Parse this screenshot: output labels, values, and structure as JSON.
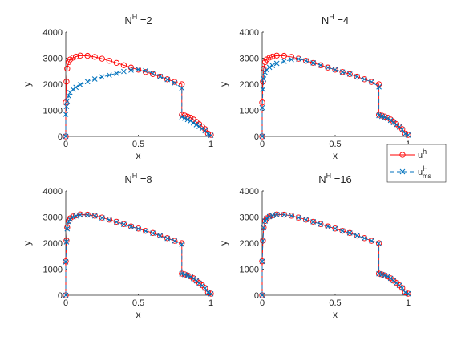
{
  "chart_data": [
    {
      "type": "scatter",
      "title": {
        "base": "N",
        "sup": "H",
        "rest": " =2"
      },
      "xlabel": "x",
      "ylabel": "y",
      "xlim": [
        0,
        1
      ],
      "ylim": [
        0,
        4000
      ],
      "xticks": [
        0,
        0.5,
        1
      ],
      "xtick_labels": [
        "0",
        "0.5",
        "1"
      ],
      "yticks": [
        0,
        1000,
        2000,
        3000,
        4000
      ],
      "ytick_labels": [
        "0",
        "1000",
        "2000",
        "3000",
        "4000"
      ],
      "grid": false,
      "series": [
        {
          "key": "uh",
          "color": "#ff0000",
          "marker": "circle",
          "line": "solid",
          "x": [
            0,
            0,
            0.005,
            0.01,
            0.02,
            0.03,
            0.05,
            0.07,
            0.1,
            0.15,
            0.2,
            0.25,
            0.3,
            0.35,
            0.4,
            0.45,
            0.5,
            0.55,
            0.6,
            0.65,
            0.7,
            0.75,
            0.8,
            0.8,
            0.82,
            0.84,
            0.86,
            0.88,
            0.9,
            0.92,
            0.94,
            0.96,
            0.98,
            1.0
          ],
          "y": [
            0,
            1300,
            2100,
            2600,
            2850,
            2950,
            3020,
            3060,
            3100,
            3090,
            3050,
            2980,
            2900,
            2820,
            2730,
            2640,
            2560,
            2470,
            2390,
            2290,
            2190,
            2090,
            2000,
            830,
            800,
            760,
            720,
            650,
            560,
            470,
            380,
            280,
            110,
            60
          ]
        },
        {
          "key": "ums",
          "color": "#0072bd",
          "marker": "x",
          "line": "dash",
          "x": [
            0,
            0,
            0.005,
            0.01,
            0.02,
            0.03,
            0.05,
            0.07,
            0.1,
            0.15,
            0.2,
            0.25,
            0.3,
            0.35,
            0.4,
            0.45,
            0.5,
            0.55,
            0.6,
            0.65,
            0.7,
            0.75,
            0.8,
            0.8,
            0.82,
            0.84,
            0.86,
            0.88,
            0.9,
            0.92,
            0.94,
            0.96,
            0.98,
            1.0
          ],
          "y": [
            0,
            850,
            1150,
            1350,
            1550,
            1680,
            1800,
            1880,
            1980,
            2100,
            2200,
            2280,
            2350,
            2420,
            2490,
            2540,
            2570,
            2520,
            2420,
            2300,
            2180,
            2050,
            1850,
            750,
            700,
            650,
            600,
            520,
            450,
            380,
            300,
            220,
            90,
            40
          ]
        }
      ]
    },
    {
      "type": "scatter",
      "title": {
        "base": "N",
        "sup": "H",
        "rest": " =4"
      },
      "xlabel": "x",
      "ylabel": "y",
      "xlim": [
        0,
        1
      ],
      "ylim": [
        0,
        4000
      ],
      "xticks": [
        0,
        0.5,
        1
      ],
      "xtick_labels": [
        "0",
        "0.5",
        "1"
      ],
      "yticks": [
        0,
        1000,
        2000,
        3000,
        4000
      ],
      "ytick_labels": [
        "0",
        "1000",
        "2000",
        "3000",
        "4000"
      ],
      "grid": false,
      "series": [
        {
          "key": "uh",
          "color": "#ff0000",
          "marker": "circle",
          "line": "solid",
          "x": [
            0,
            0,
            0.005,
            0.01,
            0.02,
            0.03,
            0.05,
            0.07,
            0.1,
            0.15,
            0.2,
            0.25,
            0.3,
            0.35,
            0.4,
            0.45,
            0.5,
            0.55,
            0.6,
            0.65,
            0.7,
            0.75,
            0.8,
            0.8,
            0.82,
            0.84,
            0.86,
            0.88,
            0.9,
            0.92,
            0.94,
            0.96,
            0.98,
            1.0
          ],
          "y": [
            0,
            1300,
            2100,
            2600,
            2850,
            2950,
            3020,
            3060,
            3100,
            3090,
            3050,
            2980,
            2900,
            2820,
            2730,
            2640,
            2560,
            2470,
            2390,
            2290,
            2190,
            2090,
            2000,
            830,
            800,
            760,
            720,
            650,
            560,
            470,
            380,
            280,
            110,
            60
          ]
        },
        {
          "key": "ums",
          "color": "#0072bd",
          "marker": "x",
          "line": "dash",
          "x": [
            0,
            0,
            0.005,
            0.01,
            0.02,
            0.03,
            0.05,
            0.07,
            0.1,
            0.15,
            0.2,
            0.25,
            0.3,
            0.35,
            0.4,
            0.45,
            0.5,
            0.55,
            0.6,
            0.65,
            0.7,
            0.75,
            0.8,
            0.8,
            0.82,
            0.84,
            0.86,
            0.88,
            0.9,
            0.92,
            0.94,
            0.96,
            0.98,
            1.0
          ],
          "y": [
            0,
            1100,
            1800,
            2200,
            2450,
            2550,
            2650,
            2720,
            2800,
            2880,
            2950,
            2970,
            2900,
            2820,
            2730,
            2640,
            2560,
            2470,
            2390,
            2290,
            2190,
            2090,
            1900,
            800,
            770,
            730,
            690,
            620,
            530,
            450,
            360,
            260,
            100,
            50
          ]
        }
      ]
    },
    {
      "type": "scatter",
      "title": {
        "base": "N",
        "sup": "H",
        "rest": " =8"
      },
      "xlabel": "x",
      "ylabel": "y",
      "xlim": [
        0,
        1
      ],
      "ylim": [
        0,
        4000
      ],
      "xticks": [
        0,
        0.5,
        1
      ],
      "xtick_labels": [
        "0",
        "0.5",
        "1"
      ],
      "yticks": [
        0,
        1000,
        2000,
        3000,
        4000
      ],
      "ytick_labels": [
        "0",
        "1000",
        "2000",
        "3000",
        "4000"
      ],
      "grid": false,
      "series": [
        {
          "key": "uh",
          "color": "#ff0000",
          "marker": "circle",
          "line": "solid",
          "x": [
            0,
            0,
            0.005,
            0.01,
            0.02,
            0.03,
            0.05,
            0.07,
            0.1,
            0.15,
            0.2,
            0.25,
            0.3,
            0.35,
            0.4,
            0.45,
            0.5,
            0.55,
            0.6,
            0.65,
            0.7,
            0.75,
            0.8,
            0.8,
            0.82,
            0.84,
            0.86,
            0.88,
            0.9,
            0.92,
            0.94,
            0.96,
            0.98,
            1.0
          ],
          "y": [
            0,
            1300,
            2100,
            2600,
            2850,
            2950,
            3020,
            3060,
            3100,
            3090,
            3050,
            2980,
            2900,
            2820,
            2730,
            2640,
            2560,
            2470,
            2390,
            2290,
            2190,
            2090,
            2000,
            830,
            800,
            760,
            720,
            650,
            560,
            470,
            380,
            280,
            110,
            60
          ]
        },
        {
          "key": "ums",
          "color": "#0072bd",
          "marker": "x",
          "line": "dash",
          "x": [
            0,
            0,
            0.005,
            0.01,
            0.02,
            0.03,
            0.05,
            0.07,
            0.1,
            0.15,
            0.2,
            0.25,
            0.3,
            0.35,
            0.4,
            0.45,
            0.5,
            0.55,
            0.6,
            0.65,
            0.7,
            0.75,
            0.8,
            0.8,
            0.82,
            0.84,
            0.86,
            0.88,
            0.9,
            0.92,
            0.94,
            0.96,
            0.98,
            1.0
          ],
          "y": [
            0,
            1280,
            2050,
            2550,
            2820,
            2920,
            3000,
            3040,
            3080,
            3080,
            3040,
            2970,
            2890,
            2810,
            2720,
            2630,
            2550,
            2460,
            2380,
            2280,
            2180,
            2080,
            1950,
            820,
            790,
            750,
            710,
            640,
            550,
            460,
            370,
            270,
            105,
            55
          ]
        }
      ]
    },
    {
      "type": "scatter",
      "title": {
        "base": "N",
        "sup": "H",
        "rest": " =16"
      },
      "xlabel": "x",
      "ylabel": "y",
      "xlim": [
        0,
        1
      ],
      "ylim": [
        0,
        4000
      ],
      "xticks": [
        0,
        0.5,
        1
      ],
      "xtick_labels": [
        "0",
        "0.5",
        "1"
      ],
      "yticks": [
        0,
        1000,
        2000,
        3000,
        4000
      ],
      "ytick_labels": [
        "0",
        "1000",
        "2000",
        "3000",
        "4000"
      ],
      "grid": false,
      "series": [
        {
          "key": "uh",
          "color": "#ff0000",
          "marker": "circle",
          "line": "solid",
          "x": [
            0,
            0,
            0.005,
            0.01,
            0.02,
            0.03,
            0.05,
            0.07,
            0.1,
            0.15,
            0.2,
            0.25,
            0.3,
            0.35,
            0.4,
            0.45,
            0.5,
            0.55,
            0.6,
            0.65,
            0.7,
            0.75,
            0.8,
            0.8,
            0.82,
            0.84,
            0.86,
            0.88,
            0.9,
            0.92,
            0.94,
            0.96,
            0.98,
            1.0
          ],
          "y": [
            0,
            1300,
            2100,
            2600,
            2850,
            2950,
            3020,
            3060,
            3100,
            3090,
            3050,
            2980,
            2900,
            2820,
            2730,
            2640,
            2560,
            2470,
            2390,
            2290,
            2190,
            2090,
            2000,
            830,
            800,
            760,
            720,
            650,
            560,
            470,
            380,
            280,
            110,
            60
          ]
        },
        {
          "key": "ums",
          "color": "#0072bd",
          "marker": "x",
          "line": "dash",
          "x": [
            0,
            0,
            0.005,
            0.01,
            0.02,
            0.03,
            0.05,
            0.07,
            0.1,
            0.15,
            0.2,
            0.25,
            0.3,
            0.35,
            0.4,
            0.45,
            0.5,
            0.55,
            0.6,
            0.65,
            0.7,
            0.75,
            0.8,
            0.8,
            0.82,
            0.84,
            0.86,
            0.88,
            0.9,
            0.92,
            0.94,
            0.96,
            0.98,
            1.0
          ],
          "y": [
            0,
            1295,
            2090,
            2590,
            2845,
            2945,
            3015,
            3055,
            3095,
            3088,
            3048,
            2978,
            2898,
            2818,
            2728,
            2638,
            2558,
            2468,
            2388,
            2288,
            2188,
            2088,
            1990,
            828,
            798,
            758,
            718,
            648,
            558,
            468,
            378,
            278,
            108,
            58
          ]
        }
      ]
    }
  ],
  "legend": {
    "placement": "right-middle",
    "entries": [
      {
        "series_key": "uh",
        "base": "u",
        "sup": "h",
        "sub": ""
      },
      {
        "series_key": "ums",
        "base": "u",
        "sup": "H",
        "sub": "ms"
      }
    ]
  }
}
